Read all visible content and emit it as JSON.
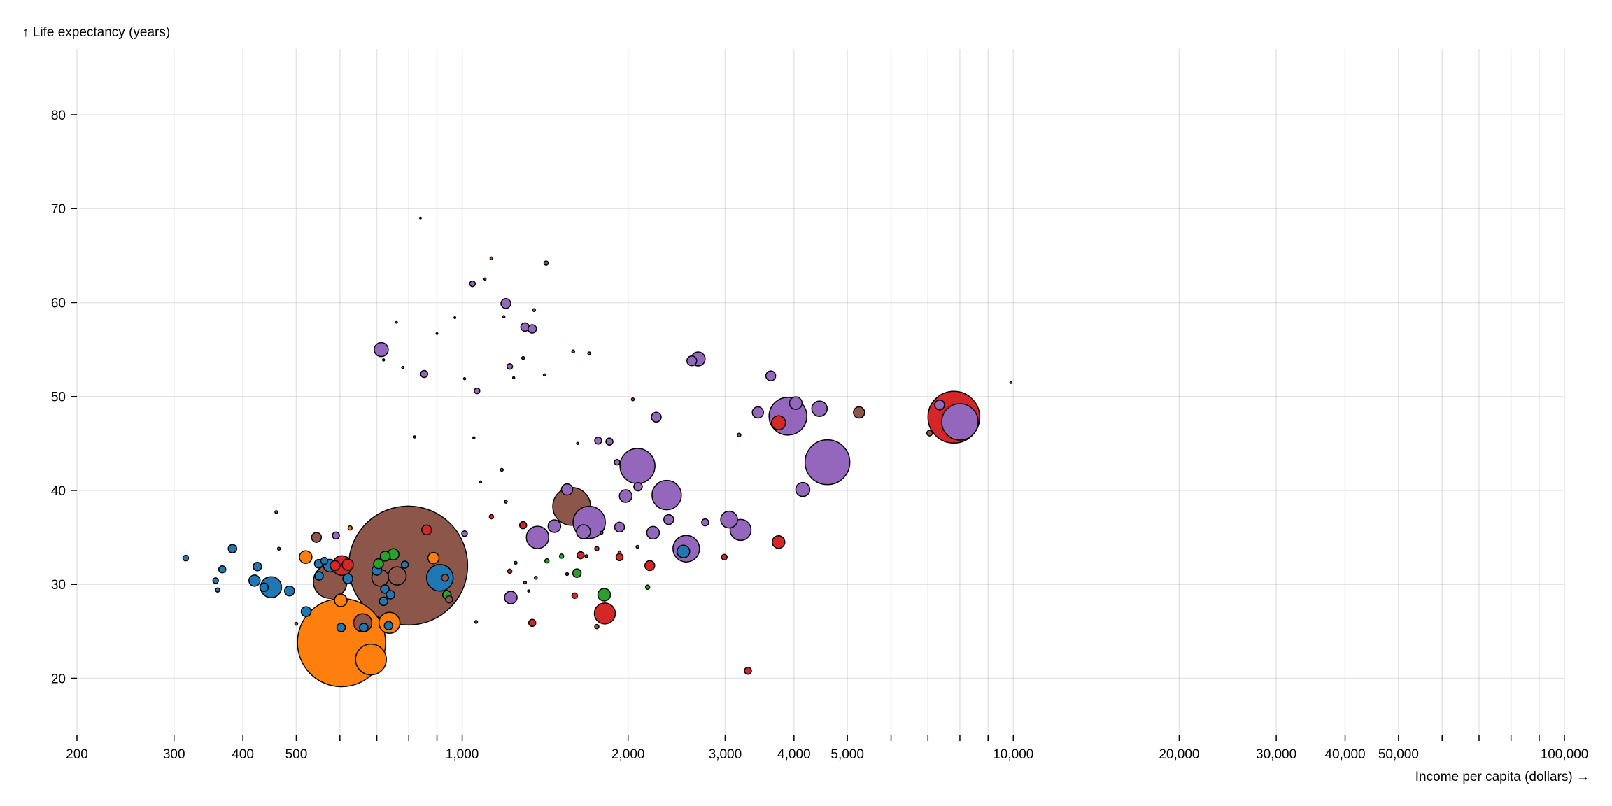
{
  "chart_data": {
    "type": "scatter",
    "xscale": "log",
    "xlabel": "Income per capita (dollars) →",
    "ylabel": "↑ Life expectancy (years)",
    "xlim": [
      200,
      100000
    ],
    "ylim": [
      14,
      87
    ],
    "grid": true,
    "x_ticks": [
      200,
      300,
      400,
      500,
      600,
      700,
      800,
      900,
      1000,
      2000,
      3000,
      4000,
      5000,
      6000,
      7000,
      8000,
      9000,
      10000,
      20000,
      30000,
      40000,
      50000,
      60000,
      70000,
      80000,
      90000,
      100000
    ],
    "x_tick_labels": [
      "200",
      "300",
      "400",
      "500",
      "",
      "",
      "",
      "",
      "1,000",
      "2,000",
      "3,000",
      "4,000",
      "5,000",
      "",
      "",
      "",
      "",
      "10,000",
      "20,000",
      "30,000",
      "40,000",
      "50,000",
      "",
      "",
      "",
      "",
      "100,000"
    ],
    "y_ticks": [
      20,
      30,
      40,
      50,
      60,
      70,
      80
    ],
    "y_tick_labels": [
      "20",
      "30",
      "40",
      "50",
      "60",
      "70",
      "80"
    ],
    "series_colors": {
      "blue": "#1f77b4",
      "orange": "#ff7f0e",
      "green": "#2ca02c",
      "red": "#d62728",
      "purple": "#9467bd",
      "brown": "#8c564b"
    },
    "points": [
      {
        "x": 798,
        "y": 32.0,
        "r": 85,
        "c": "brown"
      },
      {
        "x": 604,
        "y": 23.8,
        "r": 63,
        "c": "orange"
      },
      {
        "x": 7800,
        "y": 47.8,
        "r": 37,
        "c": "red"
      },
      {
        "x": 4600,
        "y": 43.0,
        "r": 32,
        "c": "purple"
      },
      {
        "x": 3900,
        "y": 47.9,
        "r": 27,
        "c": "purple"
      },
      {
        "x": 8000,
        "y": 47.3,
        "r": 26,
        "c": "purple"
      },
      {
        "x": 1580,
        "y": 38.3,
        "r": 27,
        "c": "brown"
      },
      {
        "x": 2080,
        "y": 42.6,
        "r": 25,
        "c": "purple"
      },
      {
        "x": 576,
        "y": 30.3,
        "r": 24,
        "c": "brown"
      },
      {
        "x": 1700,
        "y": 36.6,
        "r": 23,
        "c": "purple"
      },
      {
        "x": 2350,
        "y": 39.5,
        "r": 21,
        "c": "purple"
      },
      {
        "x": 683,
        "y": 22.0,
        "r": 22,
        "c": "orange"
      },
      {
        "x": 2550,
        "y": 33.8,
        "r": 19,
        "c": "purple"
      },
      {
        "x": 911,
        "y": 30.7,
        "r": 19,
        "c": "blue"
      },
      {
        "x": 1370,
        "y": 35.0,
        "r": 16,
        "c": "purple"
      },
      {
        "x": 3200,
        "y": 35.8,
        "r": 15,
        "c": "purple"
      },
      {
        "x": 450,
        "y": 29.7,
        "r": 15,
        "c": "blue"
      },
      {
        "x": 738,
        "y": 25.9,
        "r": 15,
        "c": "orange"
      },
      {
        "x": 1815,
        "y": 26.9,
        "r": 15,
        "c": "red"
      },
      {
        "x": 660,
        "y": 25.9,
        "r": 13,
        "c": "brown"
      },
      {
        "x": 3050,
        "y": 36.9,
        "r": 12,
        "c": "purple"
      },
      {
        "x": 762,
        "y": 30.9,
        "r": 13,
        "c": "brown"
      },
      {
        "x": 605,
        "y": 32.0,
        "r": 14,
        "c": "red"
      },
      {
        "x": 710,
        "y": 30.7,
        "r": 12,
        "c": "brown"
      },
      {
        "x": 713,
        "y": 55.0,
        "r": 10,
        "c": "purple"
      },
      {
        "x": 2680,
        "y": 54.0,
        "r": 10,
        "c": "purple"
      },
      {
        "x": 4150,
        "y": 40.1,
        "r": 10,
        "c": "purple"
      },
      {
        "x": 3750,
        "y": 34.5,
        "r": 9,
        "c": "red"
      },
      {
        "x": 1660,
        "y": 35.6,
        "r": 10,
        "c": "purple"
      },
      {
        "x": 3750,
        "y": 47.2,
        "r": 10,
        "c": "red"
      },
      {
        "x": 4450,
        "y": 48.7,
        "r": 11,
        "c": "purple"
      },
      {
        "x": 5250,
        "y": 48.3,
        "r": 8,
        "c": "brown"
      },
      {
        "x": 4030,
        "y": 49.3,
        "r": 9,
        "c": "purple"
      },
      {
        "x": 3630,
        "y": 52.2,
        "r": 7,
        "c": "purple"
      },
      {
        "x": 3440,
        "y": 48.3,
        "r": 8,
        "c": "purple"
      },
      {
        "x": 2220,
        "y": 35.5,
        "r": 9,
        "c": "purple"
      },
      {
        "x": 1980,
        "y": 39.4,
        "r": 9,
        "c": "purple"
      },
      {
        "x": 2370,
        "y": 36.9,
        "r": 7,
        "c": "purple"
      },
      {
        "x": 2250,
        "y": 47.8,
        "r": 7,
        "c": "purple"
      },
      {
        "x": 1200,
        "y": 59.9,
        "r": 7,
        "c": "purple"
      },
      {
        "x": 1300,
        "y": 57.4,
        "r": 6,
        "c": "purple"
      },
      {
        "x": 1340,
        "y": 57.2,
        "r": 6,
        "c": "purple"
      },
      {
        "x": 1225,
        "y": 28.6,
        "r": 9,
        "c": "purple"
      },
      {
        "x": 1470,
        "y": 36.2,
        "r": 9,
        "c": "purple"
      },
      {
        "x": 1550,
        "y": 40.1,
        "r": 8,
        "c": "purple"
      },
      {
        "x": 1850,
        "y": 45.2,
        "r": 5,
        "c": "purple"
      },
      {
        "x": 1930,
        "y": 36.1,
        "r": 7,
        "c": "purple"
      },
      {
        "x": 1910,
        "y": 43.0,
        "r": 4,
        "c": "purple"
      },
      {
        "x": 2085,
        "y": 40.4,
        "r": 6,
        "c": "purple"
      },
      {
        "x": 2610,
        "y": 53.8,
        "r": 7,
        "c": "purple"
      },
      {
        "x": 2760,
        "y": 36.6,
        "r": 5,
        "c": "purple"
      },
      {
        "x": 7350,
        "y": 49.1,
        "r": 7,
        "c": "purple"
      },
      {
        "x": 7050,
        "y": 46.1,
        "r": 4,
        "c": "brown"
      },
      {
        "x": 2520,
        "y": 33.5,
        "r": 9,
        "c": "blue"
      },
      {
        "x": 2190,
        "y": 32.0,
        "r": 7,
        "c": "red"
      },
      {
        "x": 1810,
        "y": 28.9,
        "r": 9,
        "c": "green"
      },
      {
        "x": 1615,
        "y": 31.2,
        "r": 6,
        "c": "green"
      },
      {
        "x": 1640,
        "y": 33.1,
        "r": 5,
        "c": "red"
      },
      {
        "x": 1930,
        "y": 32.9,
        "r": 5,
        "c": "red"
      },
      {
        "x": 2990,
        "y": 32.9,
        "r": 4,
        "c": "red"
      },
      {
        "x": 1290,
        "y": 36.3,
        "r": 5,
        "c": "red"
      },
      {
        "x": 1340,
        "y": 25.9,
        "r": 5,
        "c": "red"
      },
      {
        "x": 3300,
        "y": 20.8,
        "r": 5,
        "c": "red"
      },
      {
        "x": 1600,
        "y": 28.8,
        "r": 4,
        "c": "red"
      },
      {
        "x": 862,
        "y": 35.8,
        "r": 7,
        "c": "red"
      },
      {
        "x": 887,
        "y": 32.8,
        "r": 8,
        "c": "orange"
      },
      {
        "x": 520,
        "y": 32.9,
        "r": 9,
        "c": "orange"
      },
      {
        "x": 602,
        "y": 28.3,
        "r": 9,
        "c": "orange"
      },
      {
        "x": 620,
        "y": 32.1,
        "r": 8,
        "c": "red"
      },
      {
        "x": 544,
        "y": 35.0,
        "r": 7,
        "c": "brown"
      },
      {
        "x": 575,
        "y": 32.0,
        "r": 9,
        "c": "blue"
      },
      {
        "x": 590,
        "y": 35.2,
        "r": 5,
        "c": "purple"
      },
      {
        "x": 521,
        "y": 27.1,
        "r": 7,
        "c": "blue"
      },
      {
        "x": 486,
        "y": 29.3,
        "r": 7,
        "c": "blue"
      },
      {
        "x": 437,
        "y": 29.7,
        "r": 6,
        "c": "blue"
      },
      {
        "x": 420,
        "y": 30.4,
        "r": 8,
        "c": "blue"
      },
      {
        "x": 425,
        "y": 31.9,
        "r": 6,
        "c": "blue"
      },
      {
        "x": 383,
        "y": 33.8,
        "r": 6,
        "c": "blue"
      },
      {
        "x": 367,
        "y": 31.6,
        "r": 5,
        "c": "blue"
      },
      {
        "x": 357,
        "y": 30.4,
        "r": 4,
        "c": "blue"
      },
      {
        "x": 315,
        "y": 32.8,
        "r": 4,
        "c": "blue"
      },
      {
        "x": 360,
        "y": 29.4,
        "r": 3,
        "c": "blue"
      },
      {
        "x": 620,
        "y": 30.6,
        "r": 7,
        "c": "blue"
      },
      {
        "x": 700,
        "y": 31.5,
        "r": 7,
        "c": "blue"
      },
      {
        "x": 724,
        "y": 29.5,
        "r": 6,
        "c": "blue"
      },
      {
        "x": 741,
        "y": 28.9,
        "r": 6,
        "c": "blue"
      },
      {
        "x": 720,
        "y": 28.2,
        "r": 6,
        "c": "blue"
      },
      {
        "x": 735,
        "y": 25.6,
        "r": 6,
        "c": "blue"
      },
      {
        "x": 603,
        "y": 25.4,
        "r": 6,
        "c": "blue"
      },
      {
        "x": 663,
        "y": 25.4,
        "r": 6,
        "c": "blue"
      },
      {
        "x": 787,
        "y": 32.1,
        "r": 5,
        "c": "blue"
      },
      {
        "x": 550,
        "y": 30.9,
        "r": 6,
        "c": "blue"
      },
      {
        "x": 549,
        "y": 32.2,
        "r": 6,
        "c": "blue"
      },
      {
        "x": 562,
        "y": 32.5,
        "r": 5,
        "c": "blue"
      },
      {
        "x": 750,
        "y": 33.2,
        "r": 8,
        "c": "green"
      },
      {
        "x": 725,
        "y": 33.0,
        "r": 7,
        "c": "green"
      },
      {
        "x": 705,
        "y": 32.2,
        "r": 7,
        "c": "green"
      },
      {
        "x": 938,
        "y": 28.9,
        "r": 6,
        "c": "green"
      },
      {
        "x": 947,
        "y": 28.4,
        "r": 5,
        "c": "brown"
      },
      {
        "x": 931,
        "y": 30.7,
        "r": 5,
        "c": "brown"
      },
      {
        "x": 588,
        "y": 32.0,
        "r": 7,
        "c": "red"
      },
      {
        "x": 1044,
        "y": 62.0,
        "r": 4,
        "c": "purple"
      },
      {
        "x": 1064,
        "y": 50.6,
        "r": 4,
        "c": "purple"
      },
      {
        "x": 853,
        "y": 52.4,
        "r": 5,
        "c": "purple"
      },
      {
        "x": 1220,
        "y": 53.2,
        "r": 4,
        "c": "purple"
      },
      {
        "x": 1765,
        "y": 45.3,
        "r": 5,
        "c": "purple"
      },
      {
        "x": 1010,
        "y": 35.4,
        "r": 4,
        "c": "purple"
      },
      {
        "x": 1130,
        "y": 37.2,
        "r": 3,
        "c": "red"
      },
      {
        "x": 1220,
        "y": 31.4,
        "r": 3,
        "c": "red"
      },
      {
        "x": 1755,
        "y": 33.8,
        "r": 3,
        "c": "red"
      },
      {
        "x": 1515,
        "y": 33.0,
        "r": 3,
        "c": "green"
      },
      {
        "x": 1755,
        "y": 25.5,
        "r": 3,
        "c": "brown"
      },
      {
        "x": 2170,
        "y": 29.7,
        "r": 3,
        "c": "green"
      },
      {
        "x": 1425,
        "y": 32.5,
        "r": 3,
        "c": "green"
      },
      {
        "x": 626,
        "y": 36.0,
        "r": 3,
        "c": "orange"
      },
      {
        "x": 1130,
        "y": 64.7,
        "r": 2,
        "c": "brown"
      },
      {
        "x": 1420,
        "y": 64.2,
        "r": 3,
        "c": "brown"
      },
      {
        "x": 1180,
        "y": 42.2,
        "r": 2,
        "c": "brown"
      },
      {
        "x": 1350,
        "y": 59.2,
        "r": 2,
        "c": "brown"
      },
      {
        "x": 1700,
        "y": 54.6,
        "r": 2,
        "c": "brown"
      },
      {
        "x": 1290,
        "y": 54.1,
        "r": 2,
        "c": "brown"
      },
      {
        "x": 1590,
        "y": 54.8,
        "r": 2,
        "c": "brown"
      },
      {
        "x": 3180,
        "y": 45.9,
        "r": 2.5,
        "c": "brown"
      },
      {
        "x": 2040,
        "y": 49.7,
        "r": 2,
        "c": "brown"
      },
      {
        "x": 2080,
        "y": 34.0,
        "r": 2,
        "c": "brown"
      },
      {
        "x": 1930,
        "y": 33.4,
        "r": 2,
        "c": "brown"
      },
      {
        "x": 1680,
        "y": 33.0,
        "r": 2,
        "c": "brown"
      },
      {
        "x": 1790,
        "y": 35.5,
        "r": 2,
        "c": "brown"
      },
      {
        "x": 1200,
        "y": 38.8,
        "r": 2,
        "c": "brown"
      },
      {
        "x": 1250,
        "y": 32.3,
        "r": 2,
        "c": "brown"
      },
      {
        "x": 1300,
        "y": 30.2,
        "r": 2,
        "c": "brown"
      },
      {
        "x": 1360,
        "y": 30.7,
        "r": 2,
        "c": "brown"
      },
      {
        "x": 1550,
        "y": 31.1,
        "r": 2,
        "c": "brown"
      },
      {
        "x": 1060,
        "y": 26.0,
        "r": 2,
        "c": "brown"
      },
      {
        "x": 460,
        "y": 37.7,
        "r": 2,
        "c": "brown"
      },
      {
        "x": 465,
        "y": 33.8,
        "r": 2,
        "c": "brown"
      },
      {
        "x": 500,
        "y": 25.8,
        "r": 2,
        "c": "brown"
      },
      {
        "x": 720,
        "y": 53.9,
        "r": 1.5,
        "c": "brown"
      },
      {
        "x": 780,
        "y": 53.1,
        "r": 1.5,
        "c": "brown"
      },
      {
        "x": 820,
        "y": 45.7,
        "r": 1.5,
        "c": "brown"
      },
      {
        "x": 1050,
        "y": 45.6,
        "r": 1.5,
        "c": "brown"
      },
      {
        "x": 1080,
        "y": 40.9,
        "r": 1.5,
        "c": "brown"
      },
      {
        "x": 1100,
        "y": 62.5,
        "r": 1.5,
        "c": "brown"
      },
      {
        "x": 1190,
        "y": 58.5,
        "r": 1.5,
        "c": "brown"
      },
      {
        "x": 1240,
        "y": 52.0,
        "r": 1.5,
        "c": "brown"
      },
      {
        "x": 1410,
        "y": 52.3,
        "r": 1.5,
        "c": "brown"
      },
      {
        "x": 760,
        "y": 57.9,
        "r": 1.2,
        "c": "brown"
      },
      {
        "x": 840,
        "y": 69.0,
        "r": 1.2,
        "c": "brown"
      },
      {
        "x": 900,
        "y": 56.7,
        "r": 1.2,
        "c": "brown"
      },
      {
        "x": 970,
        "y": 58.4,
        "r": 1.2,
        "c": "brown"
      },
      {
        "x": 1010,
        "y": 51.9,
        "r": 1.5,
        "c": "brown"
      },
      {
        "x": 1620,
        "y": 45.0,
        "r": 1.5,
        "c": "brown"
      },
      {
        "x": 1320,
        "y": 29.3,
        "r": 1.5,
        "c": "brown"
      },
      {
        "x": 9900,
        "y": 51.5,
        "r": 1.5,
        "c": "brown"
      }
    ]
  }
}
